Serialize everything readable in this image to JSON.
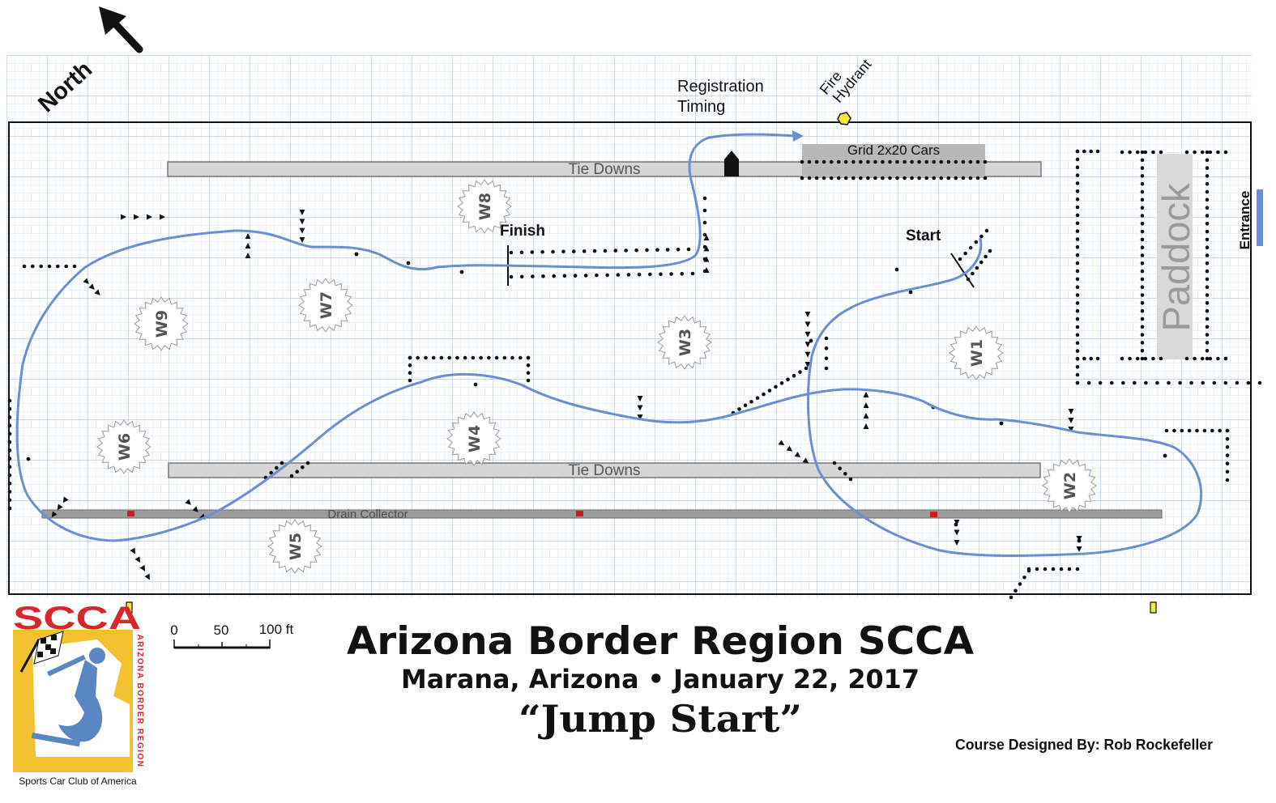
{
  "north_label": "North",
  "labels": {
    "registration": "Registration",
    "timing": "Timing",
    "fire": "Fire",
    "hydrant": "Hydrant",
    "grid": "Grid 2x20 Cars",
    "tie_downs_top": "Tie Downs",
    "tie_downs_bottom": "Tie Downs",
    "drain_collector": "Drain Collector",
    "finish": "Finish",
    "start": "Start",
    "paddock": "Paddock",
    "entrance": "Entrance"
  },
  "stations": [
    "W1",
    "W2",
    "W3",
    "W4",
    "W5",
    "W6",
    "W7",
    "W8",
    "W9"
  ],
  "scale": {
    "zero": "0",
    "mid": "50",
    "max": "100 ft"
  },
  "title": {
    "main": "Arizona Border Region SCCA",
    "sub": "Marana, Arizona • January 22, 2017",
    "event": "“Jump Start”",
    "designer": "Course Designed By:  Rob Rockefeller"
  },
  "logo": {
    "brand": "SCCA",
    "region": "ARIZONA BORDER REGION",
    "club": "Sports Car Club of America"
  },
  "colors": {
    "course": "#6b8fd0",
    "grid": "#c9d6ea",
    "tie_down": "#d6d6d6",
    "logo_red": "#d9262b",
    "logo_yellow": "#f2c230",
    "logo_blue": "#5b86c4",
    "marker_yellow": "#f5ea3a",
    "drain_marker": "#d2191f"
  }
}
